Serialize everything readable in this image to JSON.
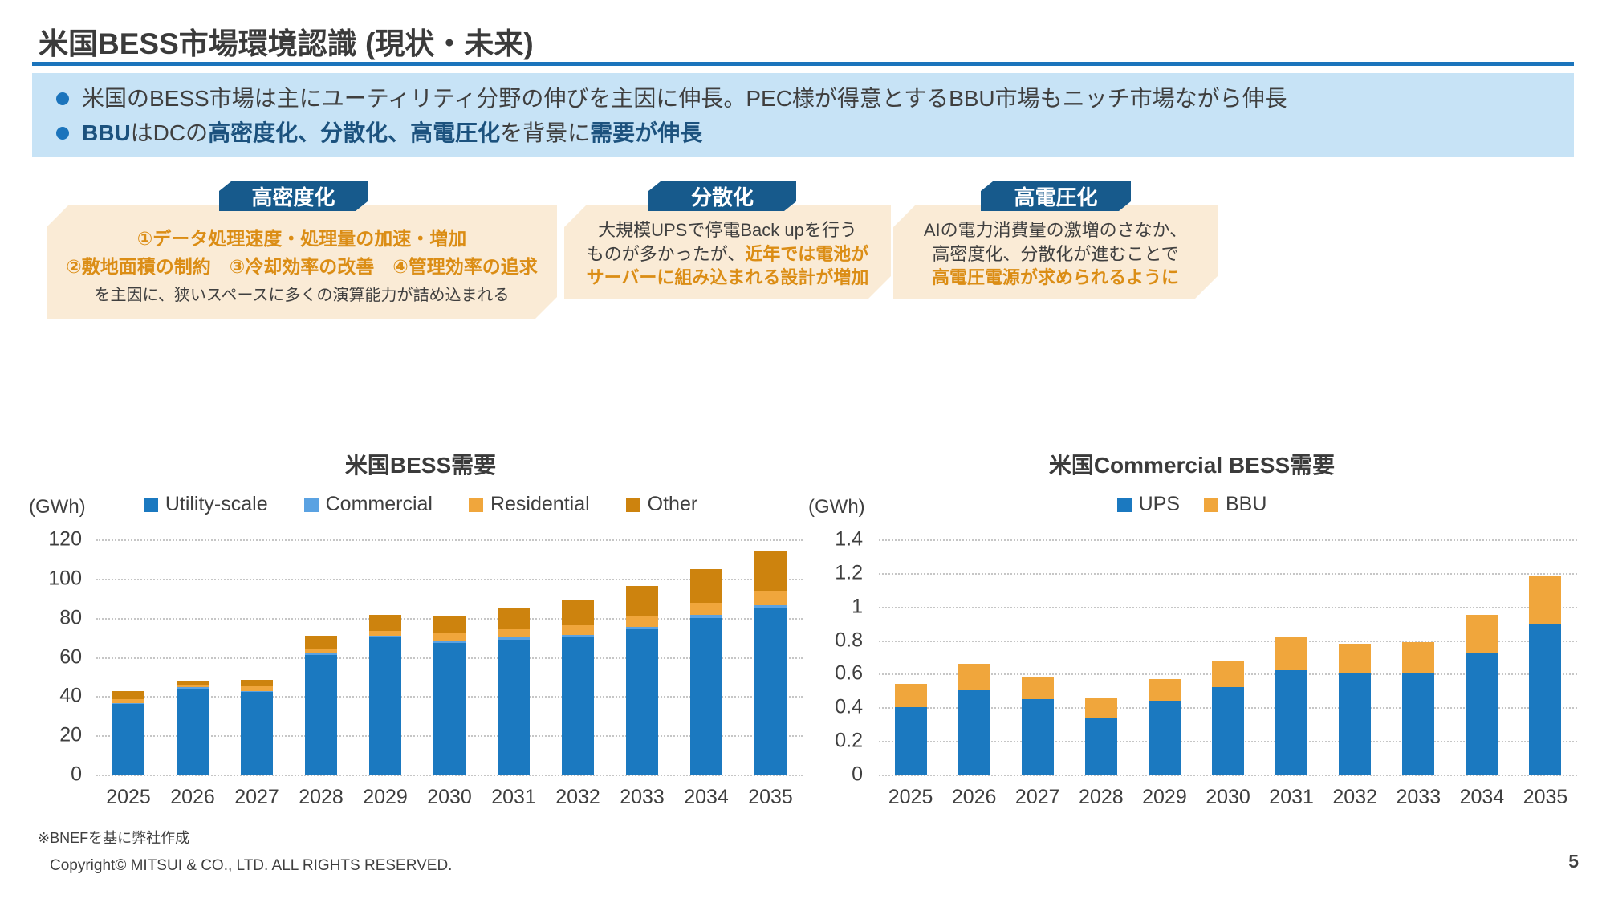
{
  "colors": {
    "accent_blue": "#1B74BC",
    "summary_bg": "#C7E3F6",
    "callout_bg": "#FAEBD6",
    "tab_bg": "#175A8C",
    "orange_text": "#DB8D15",
    "chart_blue": "#1B79C0",
    "chart_light_blue": "#5AA2E2",
    "chart_light_orange": "#F0A63C",
    "chart_dark_orange": "#CD830E"
  },
  "page": {
    "title": "米国BESS市場環境認識 (現状・未来)"
  },
  "summary": {
    "bullet1": "米国のBESS市場は主にユーティリティ分野の伸びを主因に伸長。PEC様が得意とするBBU市場もニッチ市場ながら伸長",
    "bullet2": [
      {
        "text": "BBU",
        "style": "navy"
      },
      {
        "text": "はDCの",
        "style": "plain"
      },
      {
        "text": "高密度化、分散化、高電圧化",
        "style": "navy"
      },
      {
        "text": "を背景に",
        "style": "plain"
      },
      {
        "text": "需要が伸長",
        "style": "navy"
      }
    ]
  },
  "callouts": [
    {
      "header": "高密度化",
      "lines": [
        [
          {
            "text": "①データ処理速度・処理量の加速・増加",
            "style": "orange"
          }
        ],
        [
          {
            "text": "②敷地面積の制約　③冷却効率の改善　④管理効率の追求",
            "style": "orange"
          }
        ],
        [
          {
            "text": "を主因に、狭いスペースに多くの演算能力が詰め込まれる",
            "style": "plain"
          }
        ]
      ]
    },
    {
      "header": "分散化",
      "lines": [
        [
          {
            "text": "大規模UPSで停電Back upを行う",
            "style": "plain"
          }
        ],
        [
          {
            "text": "ものが多かったが、",
            "style": "plain"
          },
          {
            "text": "近年では電池が",
            "style": "orange"
          }
        ],
        [
          {
            "text": "サーバーに組み込まれる設計が増加",
            "style": "orange"
          }
        ]
      ]
    },
    {
      "header": "高電圧化",
      "lines": [
        [
          {
            "text": "AIの電力消費量の激増のさなか、",
            "style": "plain"
          }
        ],
        [
          {
            "text": "高密度化、分散化が進むことで",
            "style": "plain"
          }
        ],
        [
          {
            "text": "高電圧電源が求められるように",
            "style": "orange"
          }
        ]
      ]
    }
  ],
  "chart_data": [
    {
      "type": "bar",
      "stacked": true,
      "title": "米国BESS需要",
      "unit_label": "(GWh)",
      "legend_position": "top",
      "grid": "dotted-horizontal",
      "categories": [
        "2025",
        "2026",
        "2027",
        "2028",
        "2029",
        "2030",
        "2031",
        "2032",
        "2033",
        "2034",
        "2035"
      ],
      "series": [
        {
          "name": "Utility-scale",
          "color": "#1B79C0",
          "values": [
            36,
            44,
            42,
            61,
            70,
            67,
            69,
            70,
            74,
            80,
            85
          ]
        },
        {
          "name": "Commercial",
          "color": "#5AA2E2",
          "values": [
            0.5,
            0.5,
            0.5,
            0.8,
            1,
            1,
            1.2,
            1.2,
            1.3,
            1.5,
            1.5
          ]
        },
        {
          "name": "Residential",
          "color": "#F0A63C",
          "values": [
            2,
            1.5,
            2.5,
            2,
            2.5,
            4,
            4,
            5,
            6,
            6,
            7.5
          ]
        },
        {
          "name": "Other",
          "color": "#CD830E",
          "values": [
            4,
            1.5,
            3.5,
            7,
            8,
            8.5,
            11,
            13,
            15,
            17.5,
            20
          ]
        }
      ],
      "ylim": [
        0,
        120
      ],
      "yticks": [
        "120",
        "100",
        "80",
        "60",
        "40",
        "20",
        "0"
      ]
    },
    {
      "type": "bar",
      "stacked": true,
      "title": "米国Commercial BESS需要",
      "unit_label": "(GWh)",
      "legend_position": "top",
      "grid": "dotted-horizontal",
      "categories": [
        "2025",
        "2026",
        "2027",
        "2028",
        "2029",
        "2030",
        "2031",
        "2032",
        "2033",
        "2034",
        "2035"
      ],
      "series": [
        {
          "name": "UPS",
          "color": "#1B79C0",
          "values": [
            0.4,
            0.5,
            0.45,
            0.34,
            0.44,
            0.52,
            0.62,
            0.6,
            0.6,
            0.72,
            0.9
          ]
        },
        {
          "name": "BBU",
          "color": "#F0A63C",
          "values": [
            0.14,
            0.16,
            0.13,
            0.12,
            0.13,
            0.16,
            0.2,
            0.18,
            0.19,
            0.23,
            0.28
          ]
        }
      ],
      "ylim": [
        0,
        1.4
      ],
      "yticks": [
        "1.4",
        "1.2",
        "1",
        "0.8",
        "0.6",
        "0.4",
        "0.2",
        "0"
      ]
    }
  ],
  "footer": {
    "source_note": "※BNEFを基に弊社作成",
    "copyright": "Copyright© MITSUI & CO., LTD. ALL RIGHTS RESERVED.",
    "page_number": "5"
  }
}
